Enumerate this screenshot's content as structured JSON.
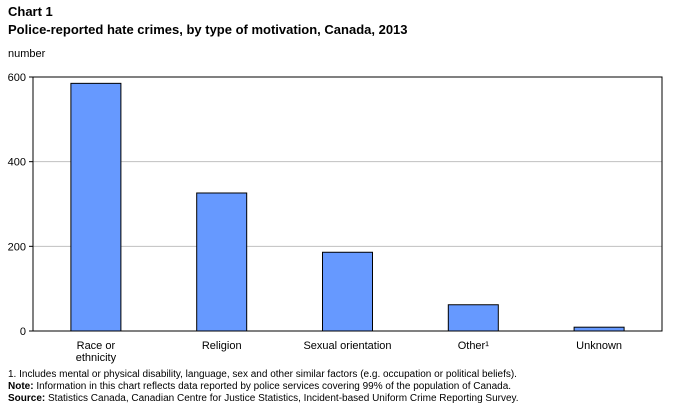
{
  "header": {
    "chart_number": "Chart 1",
    "title": "Police-reported hate crimes, by type of motivation, Canada, 2013"
  },
  "chart_data": {
    "type": "bar",
    "title": "Police-reported hate crimes, by type of motivation, Canada, 2013",
    "ylabel": "number",
    "xlabel": "",
    "ylim": [
      0,
      600
    ],
    "yticks": [
      0,
      200,
      400,
      600
    ],
    "grid": true,
    "categories": [
      [
        "Race or",
        "ethnicity"
      ],
      [
        "Religion"
      ],
      [
        "Sexual orientation"
      ],
      [
        "Other¹"
      ],
      [
        "Unknown"
      ]
    ],
    "values": [
      585,
      326,
      186,
      62,
      9
    ],
    "bar_color": "#6699ff",
    "bar_border": "#000000",
    "grid_color": "#c0c0c0"
  },
  "footnotes": {
    "note1": "1. Includes mental or physical disability, language, sex and other similar factors (e.g. occupation or political beliefs).",
    "note_label": "Note:",
    "note_text": " Information in this chart reflects data reported by police services covering 99% of the population of Canada.",
    "source_label": "Source:",
    "source_text": " Statistics Canada, Canadian Centre for Justice Statistics, Incident-based Uniform Crime Reporting Survey."
  }
}
